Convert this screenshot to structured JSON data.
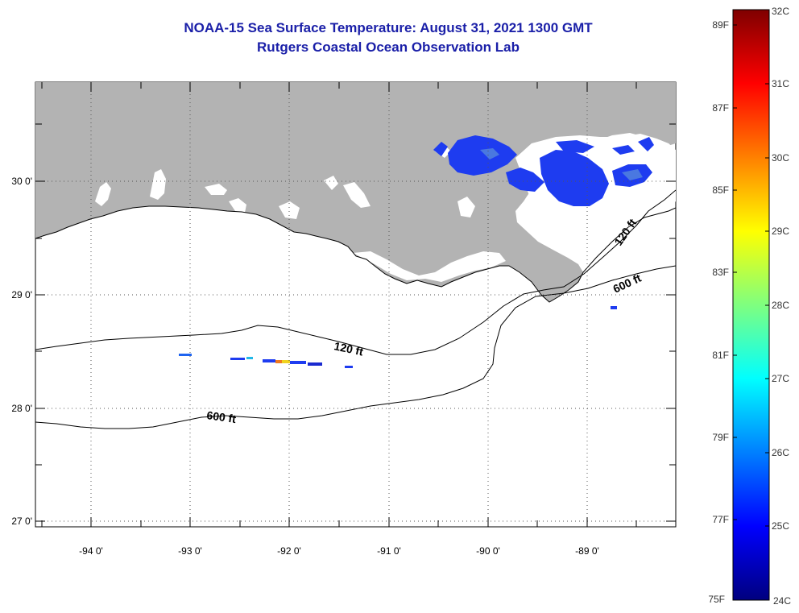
{
  "title": "NOAA-15 Sea Surface Temperature:  August 31, 2021 1300 GMT",
  "subtitle": "Rutgers Coastal Ocean Observation Lab",
  "map": {
    "lon_labels": [
      "-94 0'",
      "-93 0'",
      "-92 0'",
      "-91 0'",
      "-90 0'",
      "-89 0'"
    ],
    "lat_labels": [
      "30 0'",
      "29 0'",
      "28 0'",
      "27 0'"
    ],
    "lon_values": [
      -94,
      -93,
      -92,
      -91,
      -90,
      -89
    ],
    "lat_values": [
      30,
      29,
      28,
      27
    ],
    "extent": {
      "lon": [
        -94.55,
        -88.0
      ],
      "lat": [
        26.95,
        30.85
      ]
    },
    "contours": [
      {
        "label": "120 ft",
        "depth_ft": 120
      },
      {
        "label": "600 ft",
        "depth_ft": 600
      },
      {
        "label": "120 ft",
        "depth_ft": 120
      },
      {
        "label": "600 ft",
        "depth_ft": 600
      }
    ],
    "colors": {
      "land": "#b3b3b3",
      "ocean": "#ffffff",
      "sst_dominant": "#1e3cf0"
    }
  },
  "colorbar": {
    "celsius_labels": [
      "32C",
      "31C",
      "30C",
      "29C",
      "28C",
      "27C",
      "26C",
      "25C",
      "24C"
    ],
    "fahrenheit_labels": [
      "89F",
      "87F",
      "85F",
      "83F",
      "81F",
      "79F",
      "77F",
      "75F"
    ],
    "range_c": [
      24,
      32
    ],
    "colormap": "jet"
  }
}
